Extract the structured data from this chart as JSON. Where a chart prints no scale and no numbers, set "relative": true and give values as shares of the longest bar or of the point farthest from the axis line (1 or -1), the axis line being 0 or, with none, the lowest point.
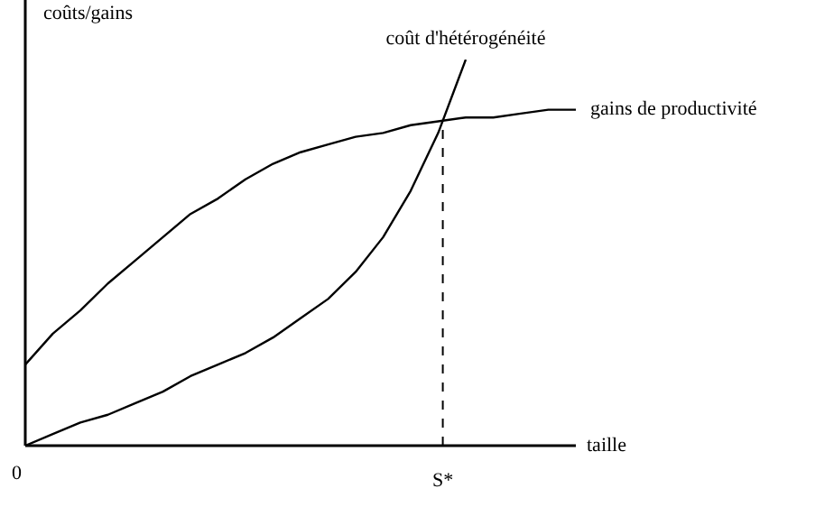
{
  "chart_data": {
    "type": "line",
    "relative": true,
    "ylabel": "coûts/gains",
    "xlabel": "taille",
    "annotations": [
      "0",
      "S*"
    ],
    "categories": [
      null,
      null,
      null,
      null,
      null,
      null,
      null,
      null,
      null,
      null,
      null,
      null,
      null,
      null,
      null,
      null,
      null,
      null,
      null,
      null,
      null
    ],
    "series": [
      {
        "name": "coût d'hétérogénéité",
        "color": "#000000",
        "values": [
          0,
          0.03,
          0.06,
          0.08,
          0.11,
          0.14,
          0.18,
          0.21,
          0.24,
          0.28,
          0.33,
          0.38,
          0.45,
          0.54,
          0.66,
          0.81,
          1,
          null,
          null,
          null,
          null
        ]
      },
      {
        "name": "gains de productivité",
        "color": "#000000",
        "values": [
          0.21,
          0.29,
          0.35,
          0.42,
          0.48,
          0.54,
          0.6,
          0.64,
          0.69,
          0.73,
          0.76,
          0.78,
          0.8,
          0.81,
          0.83,
          0.84,
          0.85,
          0.85,
          0.86,
          0.87,
          0.87
        ]
      }
    ],
    "marker": "none",
    "line_style": "solid",
    "legend": false
  }
}
